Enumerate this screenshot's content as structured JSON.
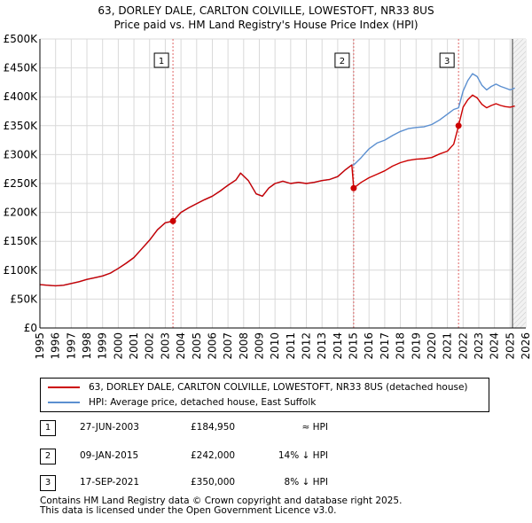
{
  "title_line1": "63, DORLEY DALE, CARLTON COLVILLE, LOWESTOFT, NR33 8US",
  "title_line2": "Price paid vs. HM Land Registry's House Price Index (HPI)",
  "chart_data": {
    "type": "line",
    "title": "63, DORLEY DALE, CARLTON COLVILLE, LOWESTOFT, NR33 8US",
    "subtitle": "Price paid vs. HM Land Registry's House Price Index (HPI)",
    "xlabel": "",
    "ylabel": "",
    "xlim": [
      1995.0,
      2026.0
    ],
    "ylim": [
      0,
      500000
    ],
    "x_ticks": [
      1995,
      1996,
      1997,
      1998,
      1999,
      2000,
      2001,
      2002,
      2003,
      2004,
      2005,
      2006,
      2007,
      2008,
      2009,
      2010,
      2011,
      2012,
      2013,
      2014,
      2015,
      2016,
      2017,
      2018,
      2019,
      2020,
      2021,
      2022,
      2023,
      2024,
      2025,
      2026
    ],
    "y_ticks": [
      {
        "value": 0,
        "label": "£0"
      },
      {
        "value": 50000,
        "label": "£50K"
      },
      {
        "value": 100000,
        "label": "£100K"
      },
      {
        "value": 150000,
        "label": "£150K"
      },
      {
        "value": 200000,
        "label": "£200K"
      },
      {
        "value": 250000,
        "label": "£250K"
      },
      {
        "value": 300000,
        "label": "£300K"
      },
      {
        "value": 350000,
        "label": "£350K"
      },
      {
        "value": 400000,
        "label": "£400K"
      },
      {
        "value": 450000,
        "label": "£450K"
      },
      {
        "value": 500000,
        "label": "£500K"
      }
    ],
    "grid": true,
    "shaded_region_after": 2025.15,
    "series": [
      {
        "name": "63, DORLEY DALE, CARLTON COLVILLE, LOWESTOFT, NR33 8US (detached house)",
        "color": "#cc0000",
        "x": [
          1995.0,
          1995.5,
          1996.0,
          1996.5,
          1997.0,
          1997.5,
          1998.0,
          1998.5,
          1999.0,
          1999.5,
          2000.0,
          2000.5,
          2001.0,
          2001.5,
          2002.0,
          2002.5,
          2003.0,
          2003.49,
          2004.0,
          2004.5,
          2005.0,
          2005.5,
          2006.0,
          2006.5,
          2007.0,
          2007.5,
          2007.8,
          2008.3,
          2008.8,
          2009.2,
          2009.6,
          2010.0,
          2010.5,
          2011.0,
          2011.5,
          2012.0,
          2012.5,
          2013.0,
          2013.5,
          2014.0,
          2014.5,
          2014.9,
          2015.02,
          2015.5,
          2016.0,
          2016.5,
          2017.0,
          2017.5,
          2018.0,
          2018.5,
          2019.0,
          2019.5,
          2020.0,
          2020.5,
          2021.0,
          2021.4,
          2021.71,
          2022.0,
          2022.3,
          2022.6,
          2022.9,
          2023.2,
          2023.5,
          2023.8,
          2024.1,
          2024.4,
          2024.7,
          2025.0,
          2025.3
        ],
        "y": [
          75000,
          74000,
          73000,
          74000,
          77000,
          80000,
          84000,
          87000,
          90000,
          95000,
          103000,
          112000,
          122000,
          137000,
          152000,
          170000,
          182000,
          184950,
          200000,
          208000,
          215000,
          222000,
          228000,
          237000,
          247000,
          256000,
          268000,
          255000,
          232000,
          228000,
          242000,
          250000,
          254000,
          250000,
          252000,
          250000,
          252000,
          255000,
          257000,
          262000,
          274000,
          282000,
          242000,
          252000,
          260000,
          266000,
          272000,
          280000,
          286000,
          290000,
          292000,
          293000,
          295000,
          301000,
          306000,
          318000,
          350000,
          382000,
          395000,
          403000,
          398000,
          387000,
          381000,
          385000,
          388000,
          385000,
          383000,
          382000,
          384000
        ]
      },
      {
        "name": "HPI: Average price, detached house, East Suffolk",
        "color": "#5b8fd0",
        "x": [
          1995.0,
          1995.5,
          1996.0,
          1996.5,
          1997.0,
          1997.5,
          1998.0,
          1998.5,
          1999.0,
          1999.5,
          2000.0,
          2000.5,
          2001.0,
          2001.5,
          2002.0,
          2002.5,
          2003.0,
          2003.49,
          2004.0,
          2004.5,
          2005.0,
          2005.5,
          2006.0,
          2006.5,
          2007.0,
          2007.5,
          2007.8,
          2008.3,
          2008.8,
          2009.2,
          2009.6,
          2010.0,
          2010.5,
          2011.0,
          2011.5,
          2012.0,
          2012.5,
          2013.0,
          2013.5,
          2014.0,
          2014.5,
          2014.9,
          2015.02,
          2015.5,
          2016.0,
          2016.5,
          2017.0,
          2017.5,
          2018.0,
          2018.5,
          2019.0,
          2019.5,
          2020.0,
          2020.5,
          2021.0,
          2021.4,
          2021.71,
          2022.0,
          2022.3,
          2022.6,
          2022.9,
          2023.2,
          2023.5,
          2023.8,
          2024.1,
          2024.4,
          2024.7,
          2025.0,
          2025.3
        ],
        "y": [
          75000,
          74000,
          73000,
          74000,
          77000,
          80000,
          84000,
          87000,
          90000,
          95000,
          103000,
          112000,
          122000,
          137000,
          152000,
          170000,
          182000,
          185000,
          200000,
          208000,
          215000,
          222000,
          228000,
          237000,
          247000,
          256000,
          268000,
          255000,
          232000,
          228000,
          242000,
          250000,
          254000,
          250000,
          252000,
          250000,
          252000,
          255000,
          257000,
          262000,
          274000,
          282000,
          282000,
          295000,
          310000,
          320000,
          325000,
          333000,
          340000,
          345000,
          347000,
          348000,
          352000,
          360000,
          370000,
          378000,
          381000,
          410000,
          428000,
          440000,
          435000,
          420000,
          412000,
          418000,
          422000,
          418000,
          415000,
          412000,
          415000
        ]
      }
    ],
    "sale_points": [
      {
        "label": "1",
        "x": 2003.49,
        "y": 184950
      },
      {
        "label": "2",
        "x": 2015.02,
        "y": 242000
      },
      {
        "label": "3",
        "x": 2021.71,
        "y": 350000
      }
    ],
    "legend_placement": "below"
  },
  "legend": {
    "property_label": "63, DORLEY DALE, CARLTON COLVILLE, LOWESTOFT, NR33 8US (detached house)",
    "hpi_label": "HPI: Average price, detached house, East Suffolk"
  },
  "transactions": [
    {
      "num": "1",
      "date": "27-JUN-2003",
      "price": "£184,950",
      "hpi": "≈ HPI"
    },
    {
      "num": "2",
      "date": "09-JAN-2015",
      "price": "£242,000",
      "hpi": "14% ↓ HPI"
    },
    {
      "num": "3",
      "date": "17-SEP-2021",
      "price": "£350,000",
      "hpi": "8% ↓ HPI"
    }
  ],
  "footer_line1": "Contains HM Land Registry data © Crown copyright and database right 2025.",
  "footer_line2": "This data is licensed under the Open Government Licence v3.0."
}
